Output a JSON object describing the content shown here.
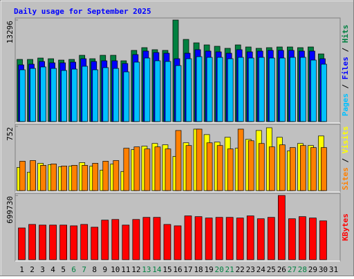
{
  "chart_data": [
    {
      "type": "bar",
      "title": "Daily usage for September 2025",
      "ylim": [
        0,
        13296
      ],
      "yticks": [
        13296
      ],
      "legend_separator": " / ",
      "series": [
        {
          "name": "Hits",
          "color": "#008040",
          "values": [
            8140,
            8140,
            8320,
            8230,
            8050,
            8140,
            8680,
            8230,
            8680,
            8680,
            7960,
            9320,
            9680,
            9410,
            9320,
            13296,
            10760,
            10310,
            10040,
            9860,
            9590,
            10040,
            9770,
            9590,
            9680,
            9770,
            9770,
            9680,
            9770,
            8860,
            null
          ]
        },
        {
          "name": "Files",
          "color": "#0000ff",
          "values": [
            7420,
            7510,
            7870,
            7690,
            7690,
            7780,
            8230,
            7870,
            7960,
            7960,
            7600,
            8770,
            9230,
            9040,
            8950,
            8230,
            8950,
            9410,
            9230,
            9130,
            8950,
            9410,
            9130,
            9230,
            9320,
            9320,
            9320,
            9230,
            9230,
            8230,
            null
          ]
        },
        {
          "name": "Pages",
          "color": "#00c0ff",
          "values": [
            6780,
            6960,
            7150,
            6960,
            6690,
            6870,
            7240,
            6780,
            7060,
            6960,
            6510,
            7780,
            8320,
            7960,
            7870,
            7330,
            8230,
            8500,
            8410,
            8410,
            8230,
            8410,
            8320,
            8410,
            8320,
            8320,
            8410,
            8410,
            8050,
            7510,
            null
          ]
        }
      ]
    },
    {
      "type": "bar",
      "ylim": [
        0,
        752
      ],
      "yticks": [
        752
      ],
      "legend_separator": " / ",
      "series": [
        {
          "name": "Visits",
          "color": "#ffff00",
          "values": [
            272,
            216,
            320,
            304,
            280,
            288,
            328,
            288,
            240,
            312,
            224,
            480,
            520,
            552,
            536,
            400,
            560,
            720,
            656,
            568,
            624,
            496,
            600,
            704,
            736,
            624,
            464,
            552,
            528,
            640,
            null
          ]
        },
        {
          "name": "Sites",
          "color": "#ff8000",
          "values": [
            344,
            352,
            296,
            312,
            288,
            296,
            296,
            320,
            344,
            352,
            496,
            512,
            488,
            512,
            488,
            704,
            528,
            720,
            560,
            528,
            488,
            720,
            584,
            552,
            512,
            536,
            504,
            528,
            504,
            504,
            null
          ]
        }
      ]
    },
    {
      "type": "bar",
      "ylim": [
        0,
        699730
      ],
      "yticks": [
        699730
      ],
      "categories": [
        "1",
        "2",
        "3",
        "4",
        "5",
        "6",
        "7",
        "8",
        "9",
        "10",
        "11",
        "12",
        "13",
        "14",
        "15",
        "16",
        "17",
        "18",
        "19",
        "20",
        "21",
        "22",
        "23",
        "24",
        "25",
        "26",
        "27",
        "28",
        "29",
        "30",
        "31"
      ],
      "category_colors": [
        "#000000",
        "#000000",
        "#000000",
        "#000000",
        "#000000",
        "#008040",
        "#008040",
        "#000000",
        "#000000",
        "#000000",
        "#000000",
        "#000000",
        "#008040",
        "#008040",
        "#000000",
        "#000000",
        "#000000",
        "#000000",
        "#000000",
        "#008040",
        "#008040",
        "#000000",
        "#000000",
        "#000000",
        "#000000",
        "#000000",
        "#008040",
        "#008040",
        "#000000",
        "#000000",
        "#000000"
      ],
      "series": [
        {
          "name": "KBytes",
          "color": "#ff0000",
          "values": [
            346000,
            384000,
            377000,
            377000,
            377000,
            369000,
            384000,
            354000,
            431000,
            438000,
            377000,
            438000,
            461000,
            461000,
            384000,
            369000,
            477000,
            469000,
            454000,
            461000,
            461000,
            454000,
            477000,
            446000,
            461000,
            699730,
            446000,
            469000,
            454000,
            423000,
            null
          ]
        }
      ]
    }
  ]
}
